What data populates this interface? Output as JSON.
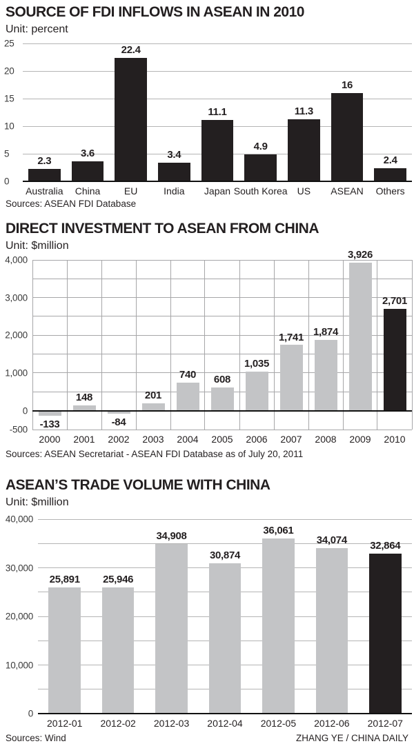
{
  "credit": "ZHANG YE / CHINA DAILY",
  "chart_data": [
    {
      "type": "bar",
      "title": "SOURCE OF FDI INFLOWS IN ASEAN IN 2010",
      "unit": "Unit: percent",
      "source": "Sources: ASEAN FDI Database",
      "categories": [
        "Australia",
        "China",
        "EU",
        "India",
        "Japan",
        "South Korea",
        "US",
        "ASEAN",
        "Others"
      ],
      "values": [
        2.3,
        3.6,
        22.4,
        3.4,
        11.1,
        4.9,
        11.3,
        16,
        2.4
      ],
      "value_labels": [
        "2.3",
        "3.6",
        "22.4",
        "3.4",
        "11.1",
        "4.9",
        "11.3",
        "16",
        "2.4"
      ],
      "ylim": [
        0,
        25
      ],
      "y_minor_step": 5,
      "yticks": [
        {
          "v": 25,
          "t": "25"
        },
        {
          "v": 20,
          "t": "20"
        },
        {
          "v": 15,
          "t": "15"
        },
        {
          "v": 10,
          "t": "10"
        },
        {
          "v": 5,
          "t": "5"
        },
        {
          "v": 0,
          "t": "0"
        }
      ],
      "grid": "horizontal",
      "ylabel_align": "left",
      "legend": "none",
      "bar_color": "#231f20",
      "bar_frac": 0.74
    },
    {
      "type": "bar",
      "title": "DIRECT INVESTMENT TO ASEAN FROM CHINA",
      "unit": "Unit: $million",
      "source": "Sources: ASEAN Secretariat - ASEAN FDI Database as of July 20, 2011",
      "categories": [
        "2000",
        "2001",
        "2002",
        "2003",
        "2004",
        "2005",
        "2006",
        "2007",
        "2008",
        "2009",
        "2010"
      ],
      "values": [
        -133,
        148,
        -84,
        201,
        740,
        608,
        1035,
        1741,
        1874,
        3926,
        2701
      ],
      "value_labels": [
        "-133",
        "148",
        "-84",
        "201",
        "740",
        "608",
        "1,035",
        "1,741",
        "1,874",
        "3,926",
        "2,701"
      ],
      "ylim": [
        -500,
        4000
      ],
      "y_minor_step": 500,
      "yticks": [
        {
          "v": 4000,
          "t": "4,000"
        },
        {
          "v": 3000,
          "t": "3,000"
        },
        {
          "v": 2000,
          "t": "2,000"
        },
        {
          "v": 1000,
          "t": "1,000"
        },
        {
          "v": 0,
          "t": "0"
        },
        {
          "v": -500,
          "t": "-500"
        }
      ],
      "grid": "both",
      "ylabel_align": "right",
      "legend": "none",
      "bar_color": "#c3c4c6",
      "highlight_index": 10,
      "highlight_color": "#231f20",
      "bar_frac": 0.66
    },
    {
      "type": "bar",
      "title": "ASEAN’S TRADE VOLUME WITH CHINA",
      "unit": "Unit: $million",
      "source": "Sources: Wind",
      "categories": [
        "2012-01",
        "2012-02",
        "2012-03",
        "2012-04",
        "2012-05",
        "2012-06",
        "2012-07"
      ],
      "values": [
        25891,
        25946,
        34908,
        30874,
        36061,
        34074,
        32864
      ],
      "value_labels": [
        "25,891",
        "25,946",
        "34,908",
        "30,874",
        "36,061",
        "34,074",
        "32,864"
      ],
      "ylim": [
        0,
        40000
      ],
      "y_minor_step": 5000,
      "yticks": [
        {
          "v": 40000,
          "t": "40,000"
        },
        {
          "v": 30000,
          "t": "30,000"
        },
        {
          "v": 20000,
          "t": "20,000"
        },
        {
          "v": 10000,
          "t": "10,000"
        },
        {
          "v": 0,
          "t": "0"
        }
      ],
      "grid": "horizontal",
      "ylabel_align": "right",
      "legend": "none",
      "bar_color": "#c3c4c6",
      "highlight_index": 6,
      "highlight_color": "#231f20",
      "bar_frac": 0.6
    }
  ]
}
